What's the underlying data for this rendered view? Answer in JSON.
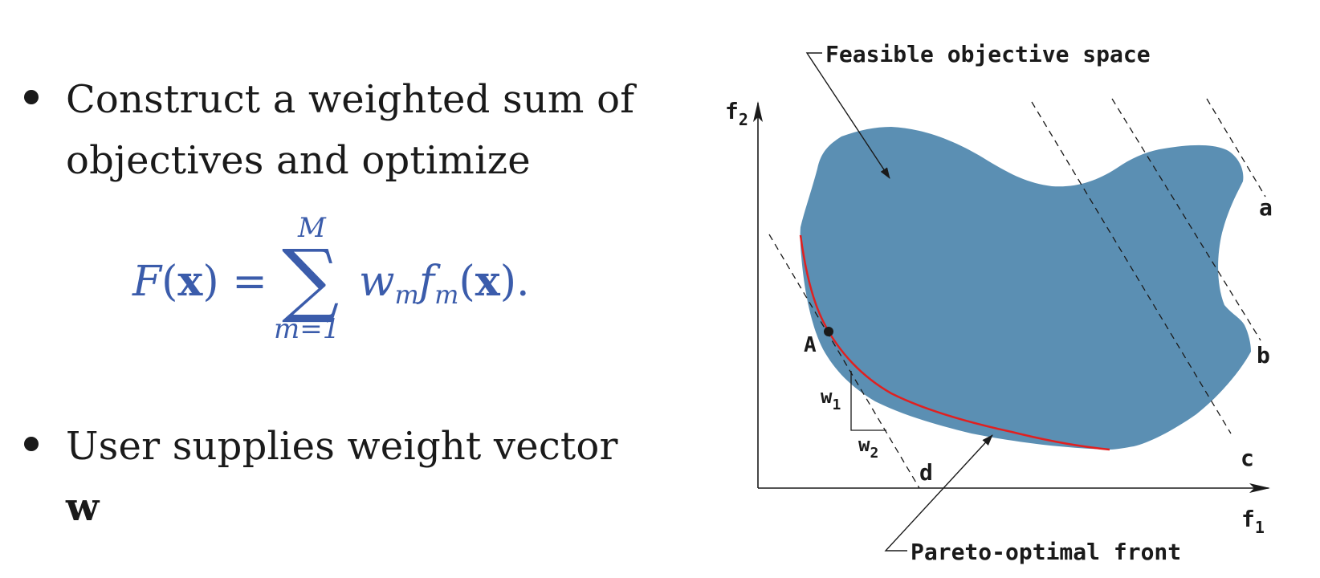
{
  "bullets": [
    {
      "line1": "Construct a weighted sum of",
      "line2": "objectives and optimize"
    },
    {
      "text": "User supplies weight vector ",
      "bold": "w"
    }
  ],
  "formula": {
    "lhs_F": "F",
    "lhs_paren_open": "(",
    "lhs_x": "x",
    "lhs_paren_close": ")",
    "equals": "=",
    "sum_symbol": "∑",
    "upper": "M",
    "lower": "m=1",
    "w": "w",
    "w_sub": "m",
    "f": "f",
    "f_sub": "m",
    "rhs_open": "(",
    "rhs_x": "x",
    "rhs_close": ").",
    "color": "#3b5cab"
  },
  "diagram": {
    "label_feasible": "Feasible objective space",
    "label_pareto": "Pareto-optimal front",
    "axis_y": "f",
    "axis_y_sub": "2",
    "axis_x": "f",
    "axis_x_sub": "1",
    "point_label": "A",
    "w1": "w",
    "w1_sub": "1",
    "w2": "w",
    "w2_sub": "2",
    "line_a": "a",
    "line_b": "b",
    "line_c": "c",
    "line_d": "d",
    "region_color": "#5b8fb3",
    "front_color": "#e02020"
  }
}
